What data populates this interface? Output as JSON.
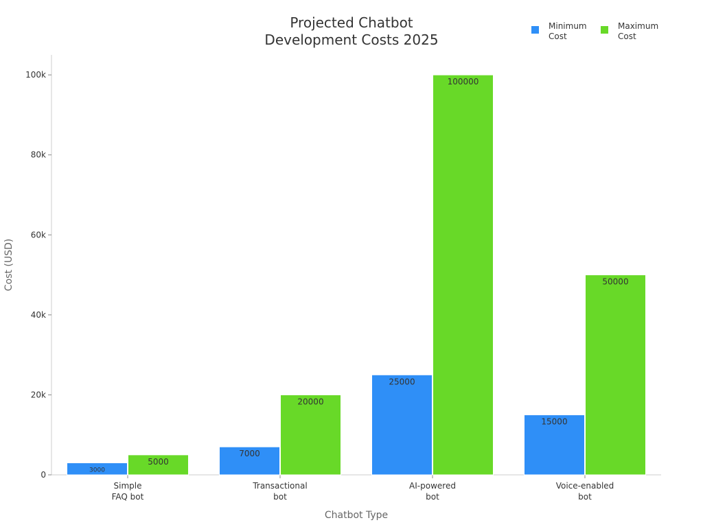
{
  "chart_data": {
    "type": "bar",
    "title": [
      "Projected Chatbot",
      "Development Costs 2025"
    ],
    "xlabel": "Chatbot Type",
    "ylabel": "Cost (USD)",
    "categories": [
      [
        "Simple",
        "FAQ bot"
      ],
      [
        "Transactional",
        "bot"
      ],
      [
        "AI-powered",
        "bot"
      ],
      [
        "Voice-enabled",
        "bot"
      ]
    ],
    "series": [
      {
        "name": [
          "Minimum",
          "Cost"
        ],
        "color": "#2f8ff7",
        "values": [
          3000,
          7000,
          25000,
          15000
        ],
        "labels": [
          "3000",
          "7000",
          "25000",
          "15000"
        ]
      },
      {
        "name": [
          "Maximum",
          "Cost"
        ],
        "color": "#68d928",
        "values": [
          5000,
          20000,
          100000,
          50000
        ],
        "labels": [
          "5000",
          "20000",
          "100000",
          "50000"
        ]
      }
    ],
    "ylim": [
      0,
      105000
    ],
    "yticks": [
      0,
      20000,
      40000,
      60000,
      80000,
      100000
    ],
    "ytick_labels": [
      "0",
      "20k",
      "40k",
      "60k",
      "80k",
      "100k"
    ],
    "grid": false,
    "legend_position": "top-right"
  }
}
